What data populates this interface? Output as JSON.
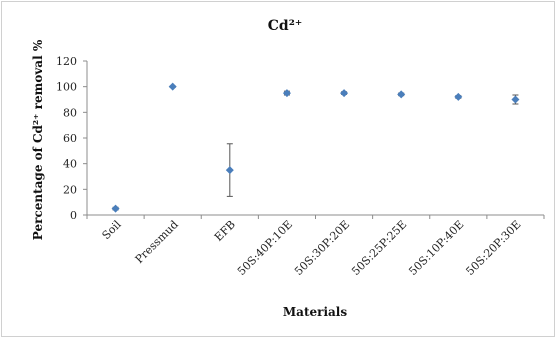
{
  "chart_data": {
    "type": "scatter",
    "title": "Cd²⁺",
    "xlabel": "Materials",
    "ylabel": "Percentage of Cd²⁺ removal %",
    "ylim": [
      0,
      120
    ],
    "yticks": [
      0,
      20,
      40,
      60,
      80,
      100,
      120
    ],
    "categories": [
      "Soil",
      "Pressmud",
      "EFB",
      "50S:40P:10E",
      "50S:30P:20E",
      "50S:25P:25E",
      "50S:10P:40E",
      "50S:20P:30E"
    ],
    "values": [
      5,
      100,
      35,
      95,
      95,
      94,
      92,
      90
    ],
    "errors": [
      1,
      0.5,
      20.5,
      1.5,
      1,
      1,
      1,
      3.5
    ],
    "marker_color": "#4a7ebb",
    "grid": false,
    "legend": "none"
  }
}
